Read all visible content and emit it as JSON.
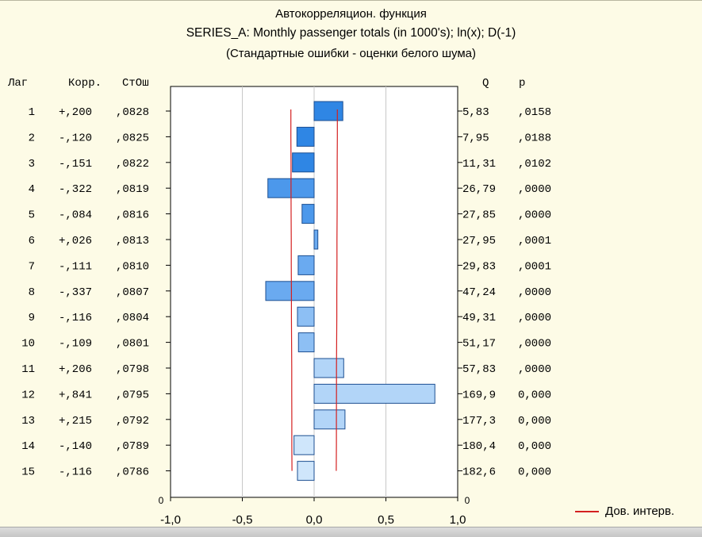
{
  "chart_data": {
    "type": "bar",
    "orientation": "horizontal",
    "title": "Автокорреляцион. функция",
    "subtitle": "SERIES_A: Monthly passenger totals (in 1000's); ln(x); D(-1)",
    "subtitle2": "(Стандартные ошибки - оценки белого шума)",
    "column_headers": {
      "lag": "Лаг",
      "corr": "Корр.",
      "se": "СтОш",
      "q": "Q",
      "p": "p"
    },
    "xlim": [
      -1.0,
      1.0
    ],
    "x_ticks": [
      "-1,0",
      "-0,5",
      "0,0",
      "0,5",
      "1,0"
    ],
    "x_tick_values": [
      -1.0,
      -0.5,
      0.0,
      0.5,
      1.0
    ],
    "zero_label_left": "0",
    "zero_label_right": "0",
    "lags": [
      "1",
      "2",
      "3",
      "4",
      "5",
      "6",
      "7",
      "8",
      "9",
      "10",
      "11",
      "12",
      "13",
      "14",
      "15"
    ],
    "corr_labels": [
      "+,200",
      "-,120",
      "-,151",
      "-,322",
      "-,084",
      "+,026",
      "-,111",
      "-,337",
      "-,116",
      "-,109",
      "+,206",
      "+,841",
      "+,215",
      "-,140",
      "-,116"
    ],
    "se_labels": [
      ",0828",
      ",0825",
      ",0822",
      ",0819",
      ",0816",
      ",0813",
      ",0810",
      ",0807",
      ",0804",
      ",0801",
      ",0798",
      ",0795",
      ",0792",
      ",0789",
      ",0786"
    ],
    "q_labels": [
      "5,83",
      "7,95",
      "11,31",
      "26,79",
      "27,85",
      "27,95",
      "29,83",
      "47,24",
      "49,31",
      "51,17",
      "57,83",
      "169,9",
      "177,3",
      "180,4",
      "182,6"
    ],
    "p_labels": [
      ",0158",
      ",0188",
      ",0102",
      ",0000",
      ",0000",
      ",0001",
      ",0001",
      ",0000",
      ",0000",
      ",0000",
      ",0000",
      "0,000",
      "0,000",
      "0,000",
      "0,000"
    ],
    "values": [
      0.2,
      -0.12,
      -0.151,
      -0.322,
      -0.084,
      0.026,
      -0.111,
      -0.337,
      -0.116,
      -0.109,
      0.206,
      0.841,
      0.215,
      -0.14,
      -0.116
    ],
    "conf_upper": [
      0.162,
      0.162,
      0.161,
      0.161,
      0.16,
      0.159,
      0.159,
      0.158,
      0.158,
      0.157,
      0.156,
      0.156,
      0.155,
      0.155,
      0.154
    ],
    "conf_lower": [
      -0.162,
      -0.162,
      -0.161,
      -0.161,
      -0.16,
      -0.159,
      -0.159,
      -0.158,
      -0.158,
      -0.157,
      -0.156,
      -0.156,
      -0.155,
      -0.155,
      -0.154
    ],
    "legend": "Дов. интерв.",
    "colors": {
      "bar_gradient": [
        "#2f86e4",
        "#4c98eb",
        "#6aaaf0",
        "#8dbff4",
        "#b2d5f8",
        "#cfe6fb"
      ],
      "bar_stroke": "#1d4f91",
      "conf_line": "#d42020",
      "background": "#fdfbe6"
    }
  }
}
